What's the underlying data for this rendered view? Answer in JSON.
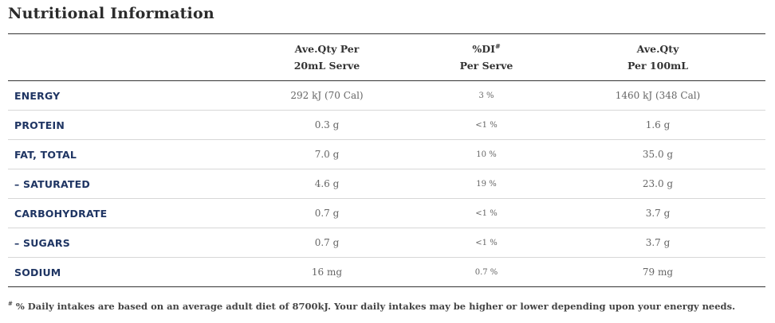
{
  "title": "Nutritional Information",
  "headers": {
    "col1_line1": "Ave.Qty Per",
    "col1_line2": "20mL Serve",
    "col2_line1": "%DI",
    "col2_mark": "#",
    "col2_line2": "Per Serve",
    "col3_line1": "Ave.Qty",
    "col3_line2": "Per 100mL"
  },
  "rows": [
    {
      "label": "ENERGY",
      "per_serve": "292 kJ (70 Cal)",
      "di": "3 %",
      "per_100": "1460 kJ (348 Cal)"
    },
    {
      "label": "PROTEIN",
      "per_serve": "0.3 g",
      "di": "<1 %",
      "per_100": "1.6 g"
    },
    {
      "label": "FAT, TOTAL",
      "per_serve": "7.0 g",
      "di": "10 %",
      "per_100": "35.0 g"
    },
    {
      "label": "– SATURATED",
      "per_serve": "4.6 g",
      "di": "19 %",
      "per_100": "23.0 g"
    },
    {
      "label": "CARBOHYDRATE",
      "per_serve": "0.7 g",
      "di": "<1 %",
      "per_100": "3.7 g"
    },
    {
      "label": "– SUGARS",
      "per_serve": "0.7 g",
      "di": "<1 %",
      "per_100": "3.7 g"
    },
    {
      "label": "SODIUM",
      "per_serve": "16 mg",
      "di": "0.7 %",
      "per_100": "79 mg"
    }
  ],
  "footnote": {
    "mark": "#",
    "text": " % Daily intakes are based on an average adult diet of 8700kJ. Your daily intakes may be higher or lower depending upon your energy needs."
  }
}
